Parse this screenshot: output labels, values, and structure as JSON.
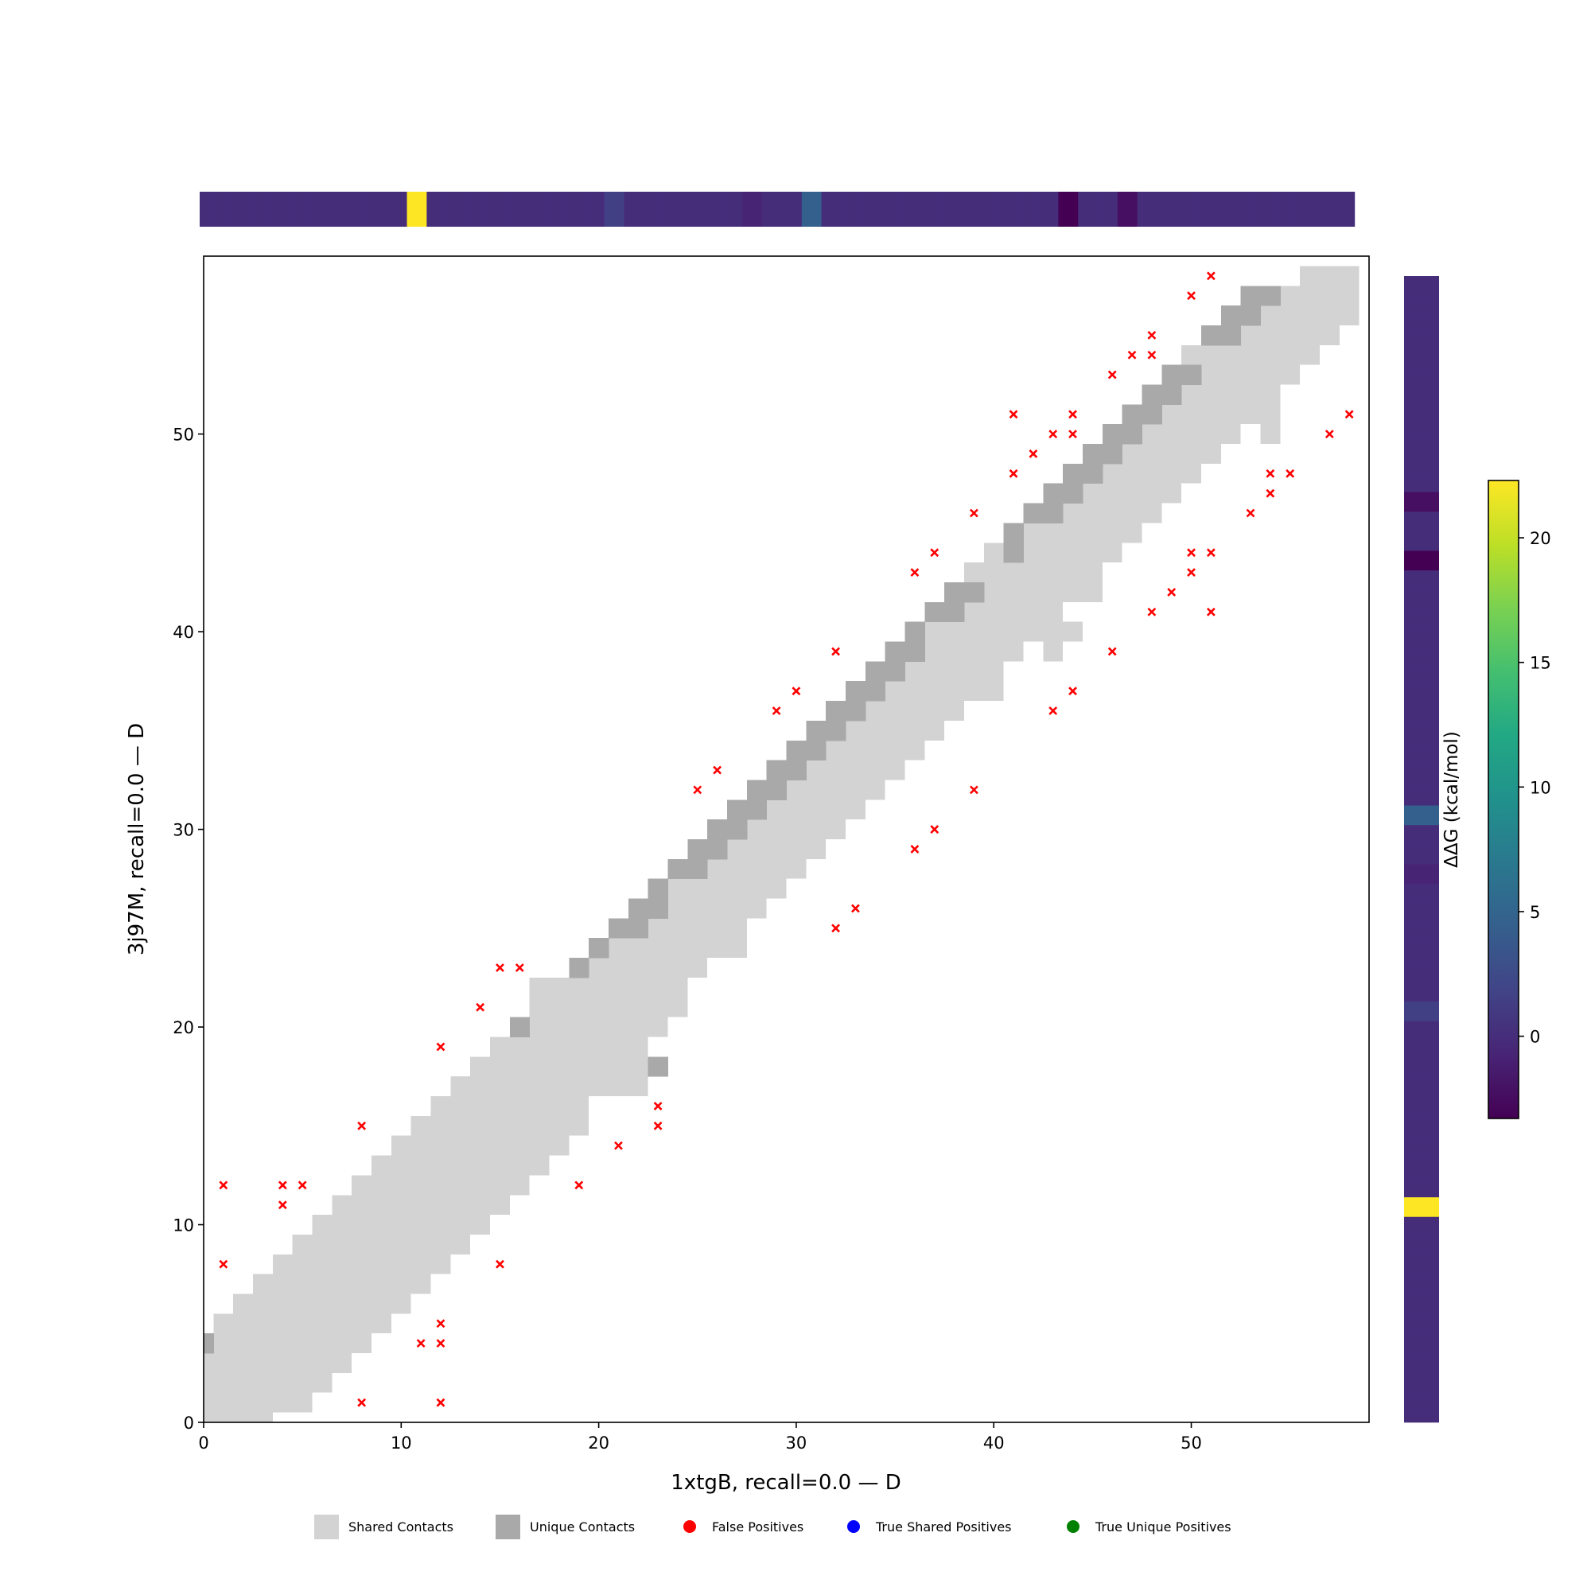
{
  "chart_data": {
    "type": "heatmap",
    "xlabel": "1xtgB, recall=0.0 — D",
    "ylabel": "3j97M, recall=0.0 — D",
    "xlim": [
      0,
      59
    ],
    "ylim": [
      0,
      59
    ],
    "xticks": [
      0,
      10,
      20,
      30,
      40,
      50
    ],
    "yticks": [
      0,
      10,
      20,
      30,
      40,
      50
    ],
    "xtick_labels": [
      "0",
      "10",
      "20",
      "30",
      "40",
      "50"
    ],
    "ytick_labels": [
      "0",
      "10",
      "20",
      "30",
      "40",
      "50"
    ],
    "grid": false,
    "colors": {
      "shared": "#d3d3d3",
      "unique": "#a9a9a9",
      "false_positive": "#ff0000",
      "true_shared_positive": "#0000ff",
      "true_unique_positive": "#008000"
    },
    "legend": {
      "placement": "bottom-center",
      "items": [
        {
          "label": "Shared Contacts",
          "kind": "patch",
          "color": "#d3d3d3"
        },
        {
          "label": "Unique Contacts",
          "kind": "patch",
          "color": "#a9a9a9"
        },
        {
          "label": "False Positives",
          "kind": "dot",
          "color": "#ff0000"
        },
        {
          "label": "True Shared Positives",
          "kind": "dot",
          "color": "#0000ff"
        },
        {
          "label": "True Unique Positives",
          "kind": "dot",
          "color": "#008000"
        }
      ]
    },
    "shared_contacts_row_ranges": [
      [
        0,
        0,
        3
      ],
      [
        1,
        0,
        5
      ],
      [
        2,
        0,
        6
      ],
      [
        3,
        0,
        7
      ],
      [
        4,
        1,
        8
      ],
      [
        5,
        1,
        9
      ],
      [
        6,
        2,
        10
      ],
      [
        7,
        3,
        11
      ],
      [
        8,
        4,
        12
      ],
      [
        9,
        5,
        13
      ],
      [
        10,
        6,
        14
      ],
      [
        11,
        7,
        15
      ],
      [
        12,
        8,
        16
      ],
      [
        13,
        9,
        17
      ],
      [
        14,
        10,
        18
      ],
      [
        15,
        11,
        19
      ],
      [
        16,
        12,
        19
      ],
      [
        17,
        13,
        22
      ],
      [
        18,
        14,
        22
      ],
      [
        19,
        15,
        22
      ],
      [
        20,
        17,
        23
      ],
      [
        21,
        17,
        24
      ],
      [
        22,
        17,
        24
      ],
      [
        23,
        20,
        25
      ],
      [
        24,
        21,
        27
      ],
      [
        25,
        23,
        27
      ],
      [
        26,
        24,
        28
      ],
      [
        27,
        24,
        29
      ],
      [
        28,
        26,
        30
      ],
      [
        29,
        27,
        31
      ],
      [
        30,
        28,
        32
      ],
      [
        31,
        29,
        33
      ],
      [
        32,
        30,
        34
      ],
      [
        33,
        31,
        35
      ],
      [
        34,
        32,
        36
      ],
      [
        35,
        33,
        37
      ],
      [
        36,
        34,
        38
      ],
      [
        37,
        35,
        40
      ],
      [
        38,
        36,
        40
      ],
      [
        39,
        37,
        41
      ],
      [
        39,
        43,
        43
      ],
      [
        40,
        37,
        44
      ],
      [
        41,
        39,
        43
      ],
      [
        42,
        40,
        45
      ],
      [
        43,
        39,
        45
      ],
      [
        44,
        40,
        40
      ],
      [
        44,
        42,
        46
      ],
      [
        45,
        42,
        47
      ],
      [
        46,
        44,
        48
      ],
      [
        47,
        45,
        49
      ],
      [
        48,
        46,
        50
      ],
      [
        49,
        47,
        51
      ],
      [
        50,
        48,
        52
      ],
      [
        50,
        54,
        54
      ],
      [
        51,
        49,
        54
      ],
      [
        52,
        50,
        54
      ],
      [
        53,
        51,
        55
      ],
      [
        54,
        50,
        56
      ],
      [
        55,
        53,
        57
      ],
      [
        56,
        54,
        58
      ],
      [
        57,
        55,
        58
      ],
      [
        58,
        56,
        58
      ]
    ],
    "unique_contacts": [
      [
        4,
        0
      ],
      [
        18,
        23
      ],
      [
        20,
        16
      ],
      [
        23,
        19
      ],
      [
        24,
        20
      ],
      [
        25,
        21
      ],
      [
        25,
        22
      ],
      [
        26,
        22
      ],
      [
        26,
        23
      ],
      [
        27,
        23
      ],
      [
        28,
        24
      ],
      [
        28,
        25
      ],
      [
        29,
        25
      ],
      [
        29,
        26
      ],
      [
        30,
        26
      ],
      [
        30,
        27
      ],
      [
        31,
        27
      ],
      [
        31,
        28
      ],
      [
        32,
        28
      ],
      [
        32,
        29
      ],
      [
        33,
        29
      ],
      [
        33,
        30
      ],
      [
        34,
        30
      ],
      [
        34,
        31
      ],
      [
        35,
        31
      ],
      [
        35,
        32
      ],
      [
        36,
        32
      ],
      [
        36,
        33
      ],
      [
        37,
        33
      ],
      [
        37,
        34
      ],
      [
        38,
        34
      ],
      [
        38,
        35
      ],
      [
        39,
        35
      ],
      [
        39,
        36
      ],
      [
        40,
        36
      ],
      [
        41,
        37
      ],
      [
        41,
        38
      ],
      [
        42,
        38
      ],
      [
        42,
        39
      ],
      [
        44,
        41
      ],
      [
        45,
        41
      ],
      [
        46,
        42
      ],
      [
        46,
        43
      ],
      [
        47,
        43
      ],
      [
        47,
        44
      ],
      [
        48,
        44
      ],
      [
        48,
        45
      ],
      [
        49,
        45
      ],
      [
        49,
        46
      ],
      [
        50,
        46
      ],
      [
        50,
        47
      ],
      [
        51,
        47
      ],
      [
        51,
        48
      ],
      [
        52,
        48
      ],
      [
        52,
        49
      ],
      [
        53,
        49
      ],
      [
        53,
        50
      ],
      [
        55,
        51
      ],
      [
        55,
        52
      ],
      [
        56,
        52
      ],
      [
        56,
        53
      ],
      [
        57,
        53
      ],
      [
        57,
        54
      ]
    ],
    "false_positives": [
      [
        1,
        12
      ],
      [
        1,
        8
      ],
      [
        4,
        12
      ],
      [
        4,
        11
      ],
      [
        5,
        12
      ],
      [
        8,
        15
      ],
      [
        8,
        1
      ],
      [
        12,
        19
      ],
      [
        12,
        5
      ],
      [
        12,
        4
      ],
      [
        11,
        4
      ],
      [
        12,
        1
      ],
      [
        14,
        21
      ],
      [
        15,
        23
      ],
      [
        16,
        23
      ],
      [
        15,
        8
      ],
      [
        19,
        12
      ],
      [
        21,
        14
      ],
      [
        23,
        16
      ],
      [
        23,
        15
      ],
      [
        25,
        32
      ],
      [
        26,
        33
      ],
      [
        29,
        36
      ],
      [
        30,
        37
      ],
      [
        32,
        39
      ],
      [
        32,
        25
      ],
      [
        33,
        26
      ],
      [
        36,
        43
      ],
      [
        37,
        44
      ],
      [
        36,
        29
      ],
      [
        37,
        30
      ],
      [
        39,
        32
      ],
      [
        39,
        46
      ],
      [
        41,
        51
      ],
      [
        41,
        48
      ],
      [
        42,
        49
      ],
      [
        43,
        50
      ],
      [
        44,
        51
      ],
      [
        44,
        50
      ],
      [
        43,
        36
      ],
      [
        44,
        37
      ],
      [
        46,
        39
      ],
      [
        46,
        53
      ],
      [
        47,
        54
      ],
      [
        48,
        55
      ],
      [
        48,
        54
      ],
      [
        50,
        57
      ],
      [
        51,
        58
      ],
      [
        48,
        41
      ],
      [
        49,
        42
      ],
      [
        50,
        44
      ],
      [
        50,
        43
      ],
      [
        51,
        44
      ],
      [
        51,
        41
      ],
      [
        53,
        46
      ],
      [
        54,
        48
      ],
      [
        54,
        47
      ],
      [
        55,
        48
      ],
      [
        57,
        50
      ],
      [
        58,
        51
      ]
    ],
    "true_shared_positives": [],
    "true_unique_positives": [],
    "ddg_per_residue": [
      0,
      0,
      0,
      0,
      0,
      0,
      0,
      0,
      0,
      0,
      0,
      22.3,
      0,
      0,
      0,
      0,
      0,
      0,
      0,
      0,
      0,
      1.5,
      0,
      0,
      0,
      0,
      0,
      0,
      -0.7,
      0,
      0,
      4.5,
      0,
      0,
      0,
      0,
      0,
      0,
      0,
      0,
      0,
      0,
      0,
      0,
      -3.3,
      0,
      0,
      -2.3,
      0,
      0,
      0,
      0,
      0,
      0,
      0,
      0,
      0,
      0,
      0
    ],
    "colorbar": {
      "label": "ΔΔG (kcal/mol)",
      "colormap": "viridis",
      "range": [
        -3.3,
        22.3
      ],
      "ticks": [
        0,
        5,
        10,
        15,
        20
      ],
      "tick_labels": [
        "0",
        "5",
        "10",
        "15",
        "20"
      ]
    }
  }
}
